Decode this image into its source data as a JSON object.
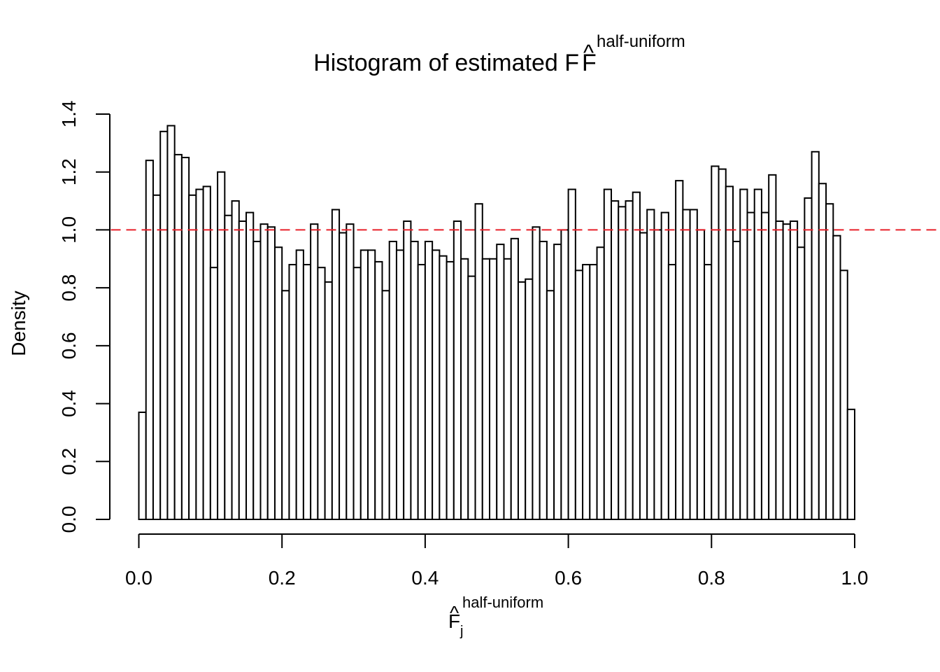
{
  "chart_data": {
    "type": "bar",
    "title": {
      "main": "Histogram of estimated F",
      "hat": "^",
      "superscript": "half-uniform"
    },
    "xlabel": {
      "main": "F",
      "hat": "^",
      "subscript": "j",
      "superscript": "half-uniform"
    },
    "ylabel": "Density",
    "xlim": [
      0,
      1
    ],
    "ylim": [
      0,
      1.4
    ],
    "x_ticks": [
      {
        "value": 0.0,
        "label": "0.0"
      },
      {
        "value": 0.2,
        "label": "0.2"
      },
      {
        "value": 0.4,
        "label": "0.4"
      },
      {
        "value": 0.6,
        "label": "0.6"
      },
      {
        "value": 0.8,
        "label": "0.8"
      },
      {
        "value": 1.0,
        "label": "1.0"
      }
    ],
    "y_ticks": [
      {
        "value": 0.0,
        "label": "0.0"
      },
      {
        "value": 0.2,
        "label": "0.2"
      },
      {
        "value": 0.4,
        "label": "0.4"
      },
      {
        "value": 0.6,
        "label": "0.6"
      },
      {
        "value": 0.8,
        "label": "0.8"
      },
      {
        "value": 1.0,
        "label": "1.0"
      },
      {
        "value": 1.2,
        "label": "1.2"
      },
      {
        "value": 1.4,
        "label": "1.4"
      }
    ],
    "bin_width": 0.01,
    "bin_start": 0.0,
    "values": [
      0.37,
      1.24,
      1.12,
      1.34,
      1.36,
      1.26,
      1.25,
      1.12,
      1.14,
      1.15,
      0.87,
      1.2,
      1.05,
      1.1,
      1.03,
      1.06,
      0.96,
      1.02,
      1.01,
      0.94,
      0.79,
      0.88,
      0.93,
      0.88,
      1.02,
      0.87,
      0.82,
      1.07,
      0.99,
      1.02,
      0.87,
      0.93,
      0.93,
      0.89,
      0.79,
      0.96,
      0.93,
      1.03,
      0.96,
      0.88,
      0.96,
      0.93,
      0.91,
      0.89,
      1.03,
      0.9,
      0.84,
      1.09,
      0.9,
      0.9,
      0.95,
      0.9,
      0.97,
      0.82,
      0.83,
      1.01,
      0.96,
      0.79,
      0.95,
      1.0,
      1.14,
      0.86,
      0.88,
      0.88,
      0.94,
      1.14,
      1.1,
      1.08,
      1.1,
      1.13,
      0.99,
      1.07,
      1.0,
      1.06,
      0.88,
      1.17,
      1.07,
      1.07,
      1.0,
      0.88,
      1.22,
      1.21,
      1.15,
      0.96,
      1.14,
      1.06,
      1.14,
      1.06,
      1.19,
      1.03,
      1.02,
      1.03,
      0.94,
      1.11,
      1.27,
      1.16,
      1.09,
      0.98,
      0.86,
      0.38
    ],
    "reference_line": {
      "y": 1.0,
      "style": "dashed",
      "color": "#e8202a"
    },
    "bar_fill": "#ffffff",
    "bar_stroke": "#000000",
    "grid": false,
    "legend": "none"
  }
}
